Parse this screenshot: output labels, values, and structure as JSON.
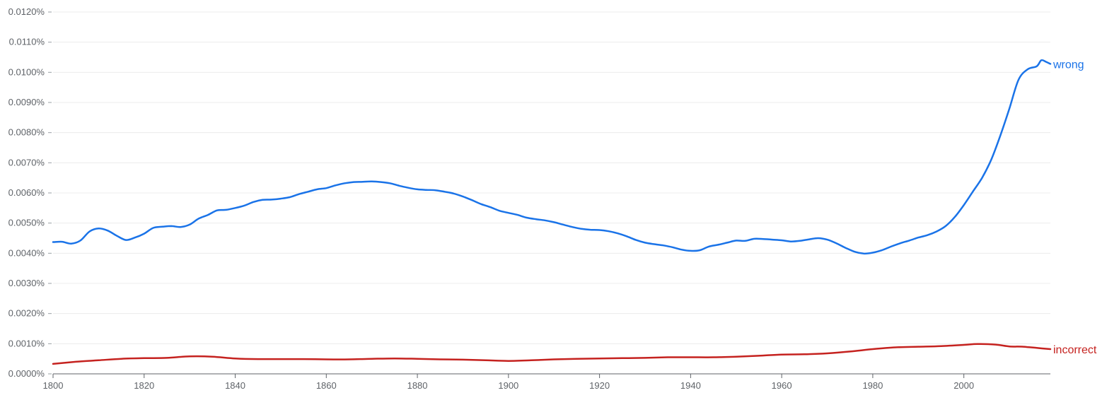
{
  "chart_data": {
    "type": "line",
    "title": "",
    "xlabel": "",
    "ylabel": "",
    "xlim": [
      1800,
      2019
    ],
    "ylim": [
      0,
      0.012
    ],
    "grid": true,
    "legend": "labels at line ends (right)",
    "x_ticks": [
      "1800",
      "1820",
      "1840",
      "1860",
      "1880",
      "1900",
      "1920",
      "1940",
      "1960",
      "1980",
      "2000"
    ],
    "y_ticks": [
      "0.0000%",
      "0.0010%",
      "0.0020%",
      "0.0030%",
      "0.0040%",
      "0.0050%",
      "0.0060%",
      "0.0070%",
      "0.0080%",
      "0.0090%",
      "0.0100%",
      "0.0110%",
      "0.0120%"
    ],
    "series": [
      {
        "name": "wrong",
        "color": "#1a73e8",
        "points": [
          [
            1800,
            0.00437
          ],
          [
            1802,
            0.00438
          ],
          [
            1804,
            0.00432
          ],
          [
            1806,
            0.00442
          ],
          [
            1808,
            0.00472
          ],
          [
            1810,
            0.00482
          ],
          [
            1812,
            0.00475
          ],
          [
            1814,
            0.00458
          ],
          [
            1816,
            0.00444
          ],
          [
            1818,
            0.00452
          ],
          [
            1820,
            0.00465
          ],
          [
            1822,
            0.00484
          ],
          [
            1824,
            0.00488
          ],
          [
            1826,
            0.0049
          ],
          [
            1828,
            0.00487
          ],
          [
            1830,
            0.00495
          ],
          [
            1832,
            0.00515
          ],
          [
            1834,
            0.00527
          ],
          [
            1836,
            0.00542
          ],
          [
            1838,
            0.00544
          ],
          [
            1840,
            0.0055
          ],
          [
            1842,
            0.00558
          ],
          [
            1844,
            0.0057
          ],
          [
            1846,
            0.00577
          ],
          [
            1848,
            0.00578
          ],
          [
            1850,
            0.00581
          ],
          [
            1852,
            0.00586
          ],
          [
            1854,
            0.00596
          ],
          [
            1856,
            0.00604
          ],
          [
            1858,
            0.00612
          ],
          [
            1860,
            0.00616
          ],
          [
            1862,
            0.00625
          ],
          [
            1864,
            0.00632
          ],
          [
            1866,
            0.00636
          ],
          [
            1868,
            0.00637
          ],
          [
            1870,
            0.00638
          ],
          [
            1872,
            0.00636
          ],
          [
            1874,
            0.00632
          ],
          [
            1876,
            0.00624
          ],
          [
            1878,
            0.00617
          ],
          [
            1880,
            0.00612
          ],
          [
            1882,
            0.0061
          ],
          [
            1884,
            0.00609
          ],
          [
            1886,
            0.00604
          ],
          [
            1888,
            0.00598
          ],
          [
            1890,
            0.00588
          ],
          [
            1892,
            0.00576
          ],
          [
            1894,
            0.00563
          ],
          [
            1896,
            0.00553
          ],
          [
            1898,
            0.00541
          ],
          [
            1900,
            0.00534
          ],
          [
            1902,
            0.00527
          ],
          [
            1904,
            0.00518
          ],
          [
            1906,
            0.00513
          ],
          [
            1908,
            0.00509
          ],
          [
            1910,
            0.00503
          ],
          [
            1912,
            0.00495
          ],
          [
            1914,
            0.00487
          ],
          [
            1916,
            0.00481
          ],
          [
            1918,
            0.00478
          ],
          [
            1920,
            0.00477
          ],
          [
            1922,
            0.00473
          ],
          [
            1924,
            0.00466
          ],
          [
            1926,
            0.00456
          ],
          [
            1928,
            0.00444
          ],
          [
            1930,
            0.00435
          ],
          [
            1932,
            0.0043
          ],
          [
            1934,
            0.00426
          ],
          [
            1936,
            0.0042
          ],
          [
            1938,
            0.00412
          ],
          [
            1940,
            0.00408
          ],
          [
            1942,
            0.0041
          ],
          [
            1944,
            0.00422
          ],
          [
            1946,
            0.00428
          ],
          [
            1948,
            0.00435
          ],
          [
            1950,
            0.00442
          ],
          [
            1952,
            0.00441
          ],
          [
            1954,
            0.00448
          ],
          [
            1956,
            0.00447
          ],
          [
            1958,
            0.00445
          ],
          [
            1960,
            0.00443
          ],
          [
            1962,
            0.00439
          ],
          [
            1964,
            0.00441
          ],
          [
            1966,
            0.00446
          ],
          [
            1968,
            0.0045
          ],
          [
            1970,
            0.00445
          ],
          [
            1972,
            0.00433
          ],
          [
            1974,
            0.00418
          ],
          [
            1976,
            0.00405
          ],
          [
            1978,
            0.00399
          ],
          [
            1980,
            0.00402
          ],
          [
            1982,
            0.0041
          ],
          [
            1984,
            0.00422
          ],
          [
            1986,
            0.00433
          ],
          [
            1988,
            0.00442
          ],
          [
            1990,
            0.00452
          ],
          [
            1992,
            0.0046
          ],
          [
            1994,
            0.00472
          ],
          [
            1996,
            0.0049
          ],
          [
            1998,
            0.0052
          ],
          [
            2000,
            0.0056
          ],
          [
            2002,
            0.00605
          ],
          [
            2004,
            0.0065
          ],
          [
            2006,
            0.0071
          ],
          [
            2008,
            0.0079
          ],
          [
            2010,
            0.0088
          ],
          [
            2012,
            0.00975
          ],
          [
            2014,
            0.0101
          ],
          [
            2016,
            0.0102
          ],
          [
            2017,
            0.0104
          ],
          [
            2018,
            0.01035
          ],
          [
            2019,
            0.01028
          ]
        ]
      },
      {
        "name": "incorrect",
        "color": "#c5221f",
        "points": [
          [
            1800,
            0.00033
          ],
          [
            1805,
            0.0004
          ],
          [
            1810,
            0.00045
          ],
          [
            1815,
            0.0005
          ],
          [
            1820,
            0.00052
          ],
          [
            1825,
            0.00053
          ],
          [
            1830,
            0.00058
          ],
          [
            1835,
            0.00057
          ],
          [
            1840,
            0.00051
          ],
          [
            1845,
            0.00049
          ],
          [
            1850,
            0.00049
          ],
          [
            1855,
            0.00049
          ],
          [
            1860,
            0.00048
          ],
          [
            1865,
            0.00048
          ],
          [
            1870,
            0.0005
          ],
          [
            1875,
            0.00051
          ],
          [
            1880,
            0.0005
          ],
          [
            1885,
            0.00048
          ],
          [
            1890,
            0.00047
          ],
          [
            1895,
            0.00045
          ],
          [
            1900,
            0.00043
          ],
          [
            1905,
            0.00045
          ],
          [
            1910,
            0.00048
          ],
          [
            1915,
            0.0005
          ],
          [
            1920,
            0.00051
          ],
          [
            1925,
            0.00052
          ],
          [
            1930,
            0.00053
          ],
          [
            1935,
            0.00055
          ],
          [
            1940,
            0.00055
          ],
          [
            1945,
            0.00055
          ],
          [
            1950,
            0.00057
          ],
          [
            1955,
            0.0006
          ],
          [
            1960,
            0.00064
          ],
          [
            1965,
            0.00065
          ],
          [
            1970,
            0.00068
          ],
          [
            1975,
            0.00074
          ],
          [
            1980,
            0.00082
          ],
          [
            1985,
            0.00088
          ],
          [
            1990,
            0.0009
          ],
          [
            1995,
            0.00092
          ],
          [
            2000,
            0.00096
          ],
          [
            2003,
            0.00099
          ],
          [
            2007,
            0.00097
          ],
          [
            2010,
            0.00091
          ],
          [
            2013,
            0.0009
          ],
          [
            2016,
            0.00086
          ],
          [
            2019,
            0.00082
          ]
        ]
      }
    ]
  }
}
